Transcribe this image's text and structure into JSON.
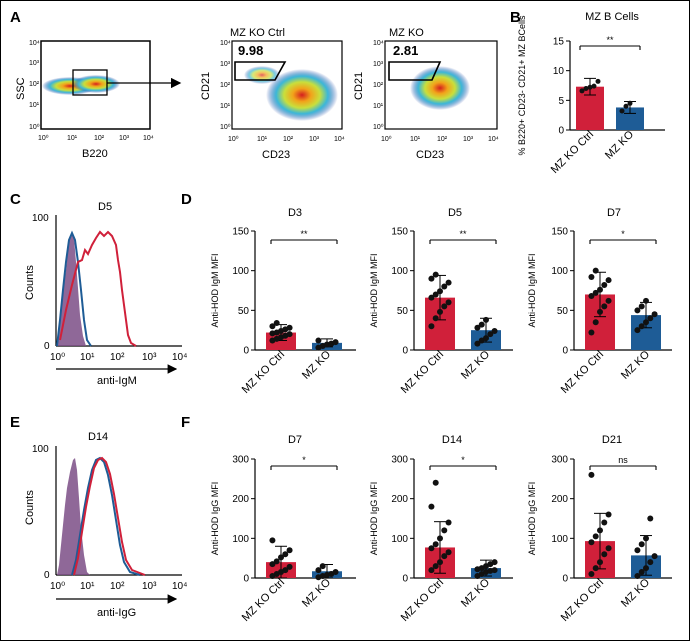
{
  "panels": {
    "A": "A",
    "B": "B",
    "C": "C",
    "D": "D",
    "E": "E",
    "F": "F"
  },
  "colors": {
    "ctrl": "#d0203a",
    "ko": "#1e5c96",
    "shade": "#7b4e86"
  },
  "flow": {
    "gate_plot": {
      "xlabel": "B220",
      "ylabel": "SSC",
      "ticks": [
        "10⁰",
        "10¹",
        "10²",
        "10³",
        "10⁴"
      ]
    },
    "ctrl_plot": {
      "title": "MZ KO Ctrl",
      "xlabel": "CD23",
      "ylabel": "CD21",
      "gate_value": "9.98"
    },
    "ko_plot": {
      "title": "MZ KO",
      "xlabel": "CD23",
      "ylabel": "CD21",
      "gate_value": "2.81"
    }
  },
  "hist_c": {
    "title": "D5",
    "xlabel": "anti-IgM",
    "ylabel": "Counts",
    "y_ticks": [
      "100",
      "0"
    ],
    "x_ticks": [
      "10⁰",
      "10¹",
      "10²",
      "10³",
      "10⁴"
    ]
  },
  "hist_e": {
    "title": "D14",
    "xlabel": "anti-IgG",
    "ylabel": "Counts",
    "y_ticks": [
      "100",
      "0"
    ],
    "x_ticks": [
      "10⁰",
      "10¹",
      "10²",
      "10³",
      "10⁴"
    ]
  },
  "chart_data": [
    {
      "id": "B",
      "type": "bar",
      "title": "MZ B Cells",
      "ylabel": "% B220+ CD23- CD21+ MZ BCells",
      "categories": [
        "MZ KO Ctrl",
        "MZ KO"
      ],
      "values": [
        7.3,
        3.8
      ],
      "errors": [
        1.4,
        1.0
      ],
      "points": [
        [
          6.6,
          7.0,
          7.2,
          7.4,
          8.2
        ],
        [
          3.2,
          4.0,
          4.5
        ]
      ],
      "ylim": [
        0,
        15
      ],
      "yticks": [
        0,
        5,
        10,
        15
      ],
      "significance": "**"
    },
    {
      "id": "D3",
      "type": "bar",
      "title": "D3",
      "ylabel": "Anti-HOD IgM MFI",
      "categories": [
        "MZ KO Ctrl",
        "MZ KO"
      ],
      "values": [
        22,
        9
      ],
      "errors": [
        10,
        5
      ],
      "points": [
        [
          12,
          14,
          16,
          18,
          20,
          21,
          22,
          24,
          26,
          28,
          30,
          34
        ],
        [
          3,
          5,
          7,
          8,
          10,
          12
        ]
      ],
      "ylim": [
        0,
        150
      ],
      "yticks": [
        0,
        50,
        100,
        150
      ],
      "significance": "**"
    },
    {
      "id": "D5",
      "type": "bar",
      "title": "D5",
      "ylabel": "Anti-HOD IgM MFI",
      "categories": [
        "MZ KO Ctrl",
        "MZ KO"
      ],
      "values": [
        66,
        25
      ],
      "errors": [
        28,
        15
      ],
      "points": [
        [
          30,
          40,
          48,
          55,
          60,
          66,
          70,
          74,
          80,
          85,
          90,
          95
        ],
        [
          8,
          12,
          15,
          20,
          24,
          28,
          32,
          38
        ]
      ],
      "ylim": [
        0,
        150
      ],
      "yticks": [
        0,
        50,
        100,
        150
      ],
      "significance": "**"
    },
    {
      "id": "D7M",
      "type": "bar",
      "title": "D7",
      "ylabel": "Anti-HOD IgM MFI",
      "categories": [
        "MZ KO Ctrl",
        "MZ KO"
      ],
      "values": [
        70,
        44
      ],
      "errors": [
        28,
        16
      ],
      "points": [
        [
          22,
          35,
          48,
          55,
          62,
          68,
          72,
          76,
          82,
          88,
          92,
          100
        ],
        [
          25,
          30,
          35,
          40,
          45,
          50,
          55,
          62
        ]
      ],
      "ylim": [
        0,
        150
      ],
      "yticks": [
        0,
        50,
        100,
        150
      ],
      "significance": "*"
    },
    {
      "id": "F7",
      "type": "bar",
      "title": "D7",
      "ylabel": "Anti-HOD IgG MFI",
      "categories": [
        "MZ KO Ctrl",
        "MZ KO"
      ],
      "values": [
        40,
        17
      ],
      "errors": [
        40,
        17
      ],
      "points": [
        [
          5,
          10,
          15,
          20,
          28,
          35,
          42,
          52,
          60,
          70,
          95
        ],
        [
          2,
          5,
          8,
          10,
          15,
          20,
          30
        ]
      ],
      "ylim": [
        0,
        300
      ],
      "yticks": [
        0,
        100,
        200,
        300
      ],
      "significance": "*"
    },
    {
      "id": "F14",
      "type": "bar",
      "title": "D14",
      "ylabel": "Anti-HOD IgG MFI",
      "categories": [
        "MZ KO Ctrl",
        "MZ KO"
      ],
      "values": [
        77,
        25
      ],
      "errors": [
        65,
        20
      ],
      "points": [
        [
          20,
          30,
          40,
          55,
          65,
          75,
          85,
          100,
          120,
          140,
          180,
          240
        ],
        [
          5,
          10,
          15,
          18,
          20,
          22,
          25,
          30,
          35,
          40
        ]
      ],
      "ylim": [
        0,
        300
      ],
      "yticks": [
        0,
        100,
        200,
        300
      ],
      "significance": "*"
    },
    {
      "id": "F21",
      "type": "bar",
      "title": "D21",
      "ylabel": "Anti-HOD IgG MFI",
      "categories": [
        "MZ KO Ctrl",
        "MZ KO"
      ],
      "values": [
        93,
        57
      ],
      "errors": [
        70,
        50
      ],
      "points": [
        [
          10,
          25,
          40,
          60,
          75,
          90,
          105,
          120,
          140,
          160,
          260
        ],
        [
          5,
          15,
          25,
          40,
          55,
          70,
          85,
          100,
          150
        ]
      ],
      "ylim": [
        0,
        300
      ],
      "yticks": [
        0,
        100,
        200,
        300
      ],
      "significance": "ns"
    }
  ]
}
